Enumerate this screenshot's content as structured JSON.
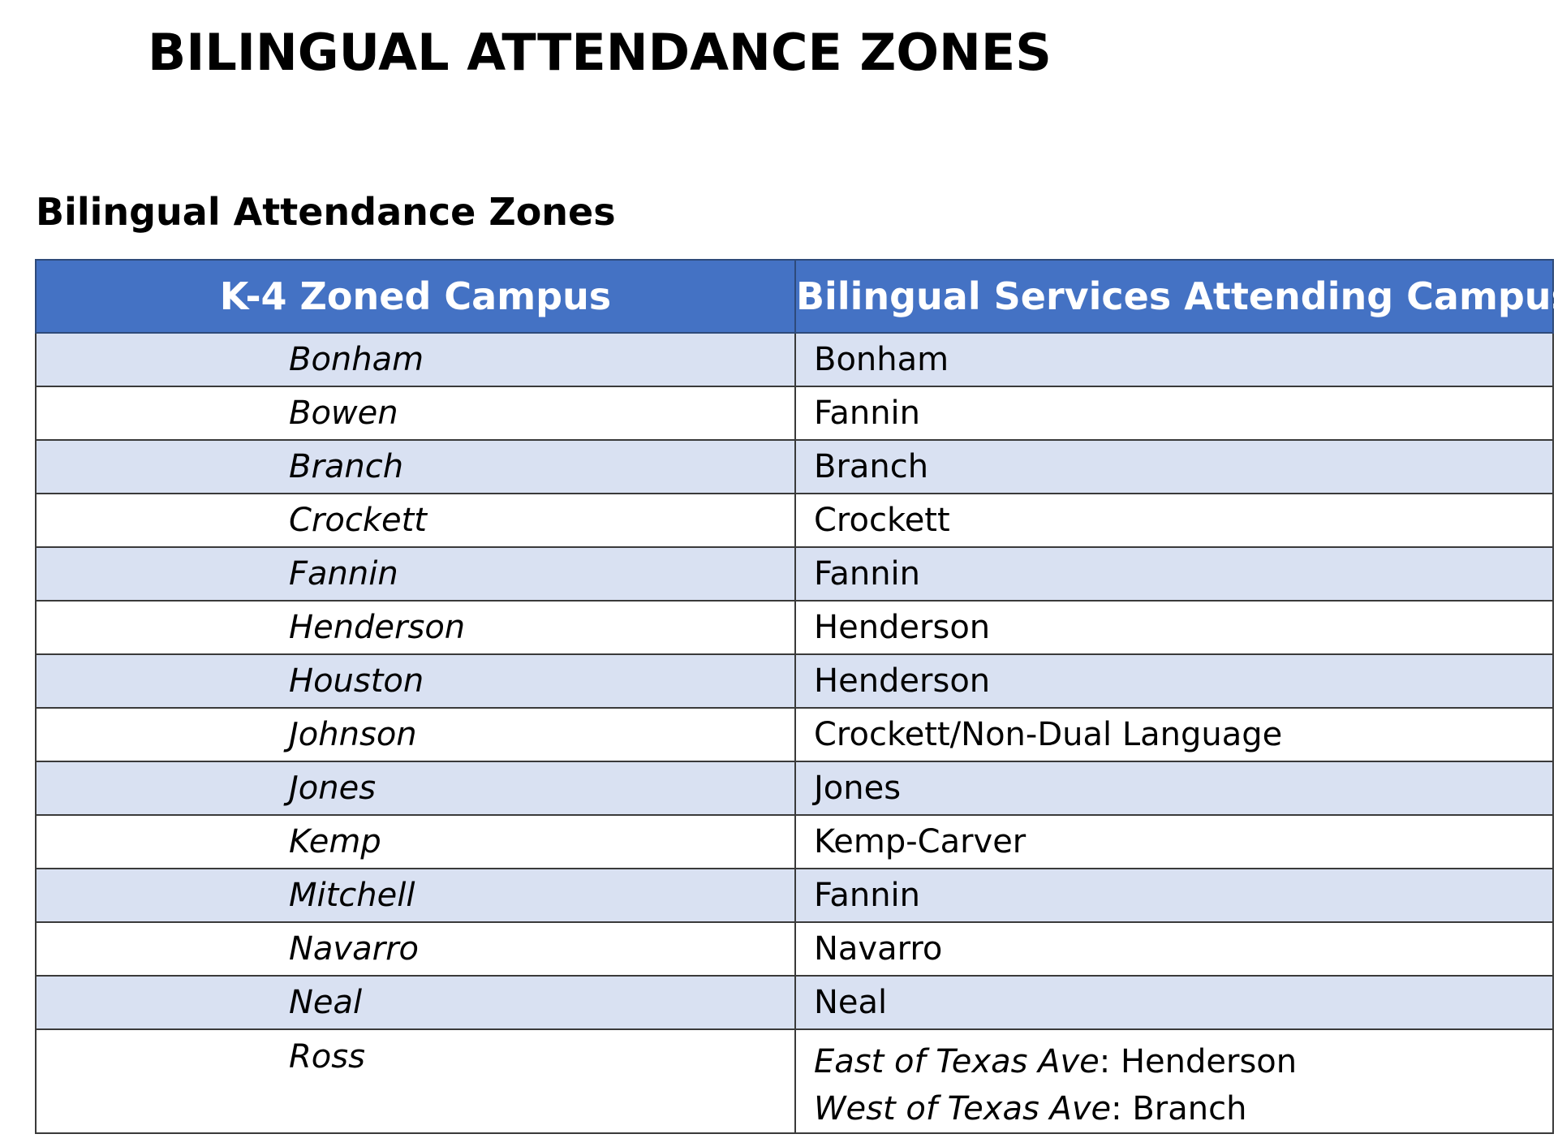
{
  "document": {
    "title": "BILINGUAL ATTENDANCE ZONES",
    "section_title": "Bilingual Attendance Zones"
  },
  "table": {
    "headers": [
      "K-4 Zoned Campus",
      "Bilingual Services Attending Campus"
    ],
    "rows": [
      {
        "zoned": "Bonham",
        "attending": "Bonham"
      },
      {
        "zoned": "Bowen",
        "attending": "Fannin"
      },
      {
        "zoned": "Branch",
        "attending": "Branch"
      },
      {
        "zoned": "Crockett",
        "attending": "Crockett"
      },
      {
        "zoned": "Fannin",
        "attending": "Fannin"
      },
      {
        "zoned": "Henderson",
        "attending": "Henderson"
      },
      {
        "zoned": "Houston",
        "attending": "Henderson"
      },
      {
        "zoned": "Johnson",
        "attending": "Crockett/Non-Dual Language"
      },
      {
        "zoned": "Jones",
        "attending": "Jones"
      },
      {
        "zoned": "Kemp",
        "attending": "Kemp-Carver"
      },
      {
        "zoned": "Mitchell",
        "attending": "Fannin"
      },
      {
        "zoned": "Navarro",
        "attending": "Navarro"
      },
      {
        "zoned": "Neal",
        "attending": "Neal"
      }
    ],
    "last_row": {
      "zoned": "Ross",
      "attending": [
        {
          "area": "East of Texas Ave",
          "campus": ": Henderson"
        },
        {
          "area": "West of Texas Ave",
          "campus": ": Branch"
        }
      ]
    }
  },
  "colors": {
    "header_bg": "#4472c4",
    "header_text": "#ffffff",
    "band_row_bg": "#d9e1f2",
    "plain_row_bg": "#ffffff"
  }
}
